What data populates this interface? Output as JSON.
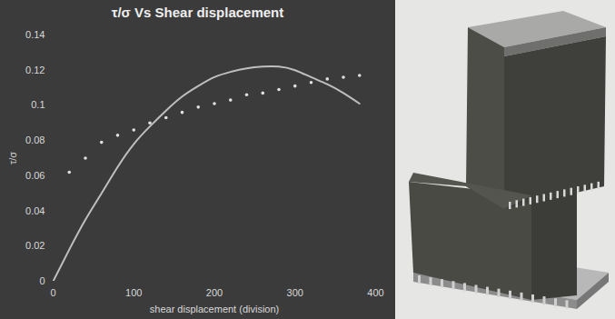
{
  "chart_data": {
    "type": "line",
    "title": "τ/σ Vs Shear displacement",
    "x_label": "shear displacement (division)",
    "y_label": "τ/σ",
    "x": [
      0,
      20,
      40,
      60,
      80,
      100,
      120,
      140,
      160,
      180,
      200,
      220,
      240,
      260,
      280,
      300,
      320,
      340,
      360,
      380
    ],
    "series": [
      {
        "type": "line",
        "color": "#bfbfbf",
        "line_style": "solid",
        "values": [
          0,
          0.018,
          0.035,
          0.05,
          0.065,
          0.078,
          0.088,
          0.097,
          0.105,
          0.111,
          0.116,
          0.119,
          0.121,
          0.122,
          0.122,
          0.12,
          0.116,
          0.112,
          0.107,
          0.101
        ]
      },
      {
        "type": "scatter",
        "color": "#e0e0e0",
        "marker": "circle",
        "values": [
          null,
          0.062,
          0.07,
          0.079,
          0.083,
          0.086,
          0.09,
          0.093,
          0.096,
          0.099,
          0.101,
          0.103,
          0.106,
          0.107,
          0.109,
          0.111,
          0.113,
          0.115,
          0.116,
          0.117
        ]
      }
    ],
    "xlim": [
      0,
      400
    ],
    "xticks": [
      0,
      100,
      200,
      300,
      400
    ],
    "ylim": [
      0,
      0.14
    ],
    "yticks": [
      0,
      0.02,
      0.04,
      0.06,
      0.08,
      0.1,
      0.12,
      0.14
    ],
    "grid": false
  }
}
